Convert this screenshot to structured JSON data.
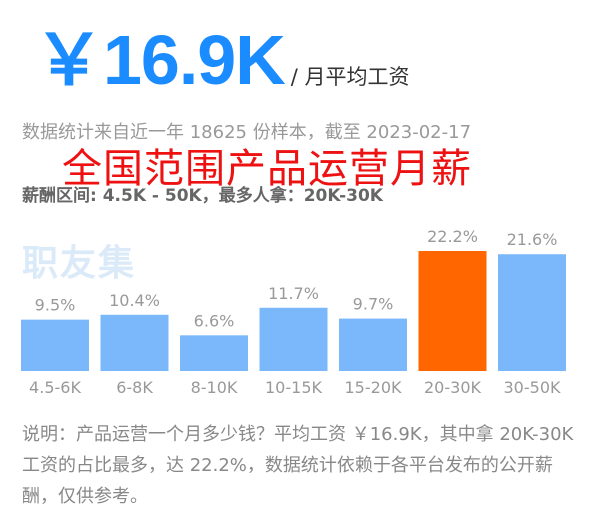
{
  "headline": {
    "salary": "￥16.9K",
    "unit": "/ 月平均工资"
  },
  "source_line": "数据统计来自近一年 18625 份样本，截至 2023-02-17",
  "overlay_title": "全国范围产品运营月薪",
  "range_line": "薪酬区间: 4.5K - 50K，最多人拿：20K-30K",
  "brand": "职友集",
  "colors": {
    "accent": "#1a8cff",
    "bar": "#7ab8fb",
    "bar_highlight": "#ff6600",
    "overlay_text": "#ee1111"
  },
  "chart_data": {
    "type": "bar",
    "categories": [
      "4.5-6K",
      "6-8K",
      "8-10K",
      "10-15K",
      "15-20K",
      "20-30K",
      "30-50K"
    ],
    "values": [
      9.5,
      10.4,
      6.6,
      11.7,
      9.7,
      22.2,
      21.6
    ],
    "value_labels": [
      "9.5%",
      "10.4%",
      "6.6%",
      "11.7%",
      "9.7%",
      "22.2%",
      "21.6%"
    ],
    "highlight_index": 5,
    "ylim": [
      0,
      22.2
    ],
    "grid": false,
    "legend": "none"
  },
  "description": "说明：产品运营一个月多少钱？平均工资 ￥16.9K，其中拿 20K-30K 工资的占比最多，达 22.2%，数据统计依赖于各平台发布的公开薪酬，仅供参考。"
}
